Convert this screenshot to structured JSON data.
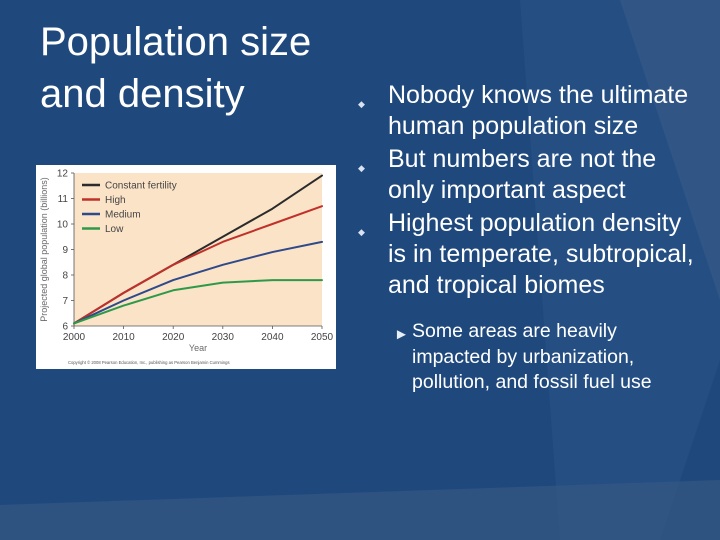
{
  "slide": {
    "title_line1": "Population size",
    "title_line2": "and density",
    "bullets": [
      "Nobody knows the ultimate human population size",
      "But numbers are not the only important aspect",
      "Highest population density is in temperate, subtropical, and tropical biomes"
    ],
    "sub_bullet": "Some areas are heavily impacted by urbanization, pollution, and fossil fuel use",
    "colors": {
      "background": "#1f497d",
      "text": "#ffffff",
      "chart_background": "#fbe3c8"
    }
  },
  "chart_data": {
    "type": "line",
    "x": [
      2000,
      2010,
      2020,
      2030,
      2040,
      2050
    ],
    "series": [
      {
        "name": "Constant fertility",
        "color": "#2b2b2b",
        "values": [
          6.1,
          7.3,
          8.4,
          9.5,
          10.6,
          11.9
        ]
      },
      {
        "name": "High",
        "color": "#c0312b",
        "values": [
          6.1,
          7.3,
          8.4,
          9.3,
          10.0,
          10.7
        ]
      },
      {
        "name": "Medium",
        "color": "#2f4a8a",
        "values": [
          6.1,
          7.0,
          7.8,
          8.4,
          8.9,
          9.3
        ]
      },
      {
        "name": "Low",
        "color": "#2e9a48",
        "values": [
          6.1,
          6.8,
          7.4,
          7.7,
          7.8,
          7.8
        ]
      }
    ],
    "xlabel": "Year",
    "ylabel": "Projected global population (billions)",
    "xlim": [
      2000,
      2050
    ],
    "ylim": [
      6,
      12
    ],
    "yticks": [
      6,
      7,
      8,
      9,
      10,
      11,
      12
    ],
    "xticks": [
      2000,
      2010,
      2020,
      2030,
      2040,
      2050
    ],
    "legend_position": "top-left",
    "grid": false,
    "copyright": "Copyright © 2008 Pearson Education, Inc., publishing as Pearson Benjamin Cummings"
  }
}
